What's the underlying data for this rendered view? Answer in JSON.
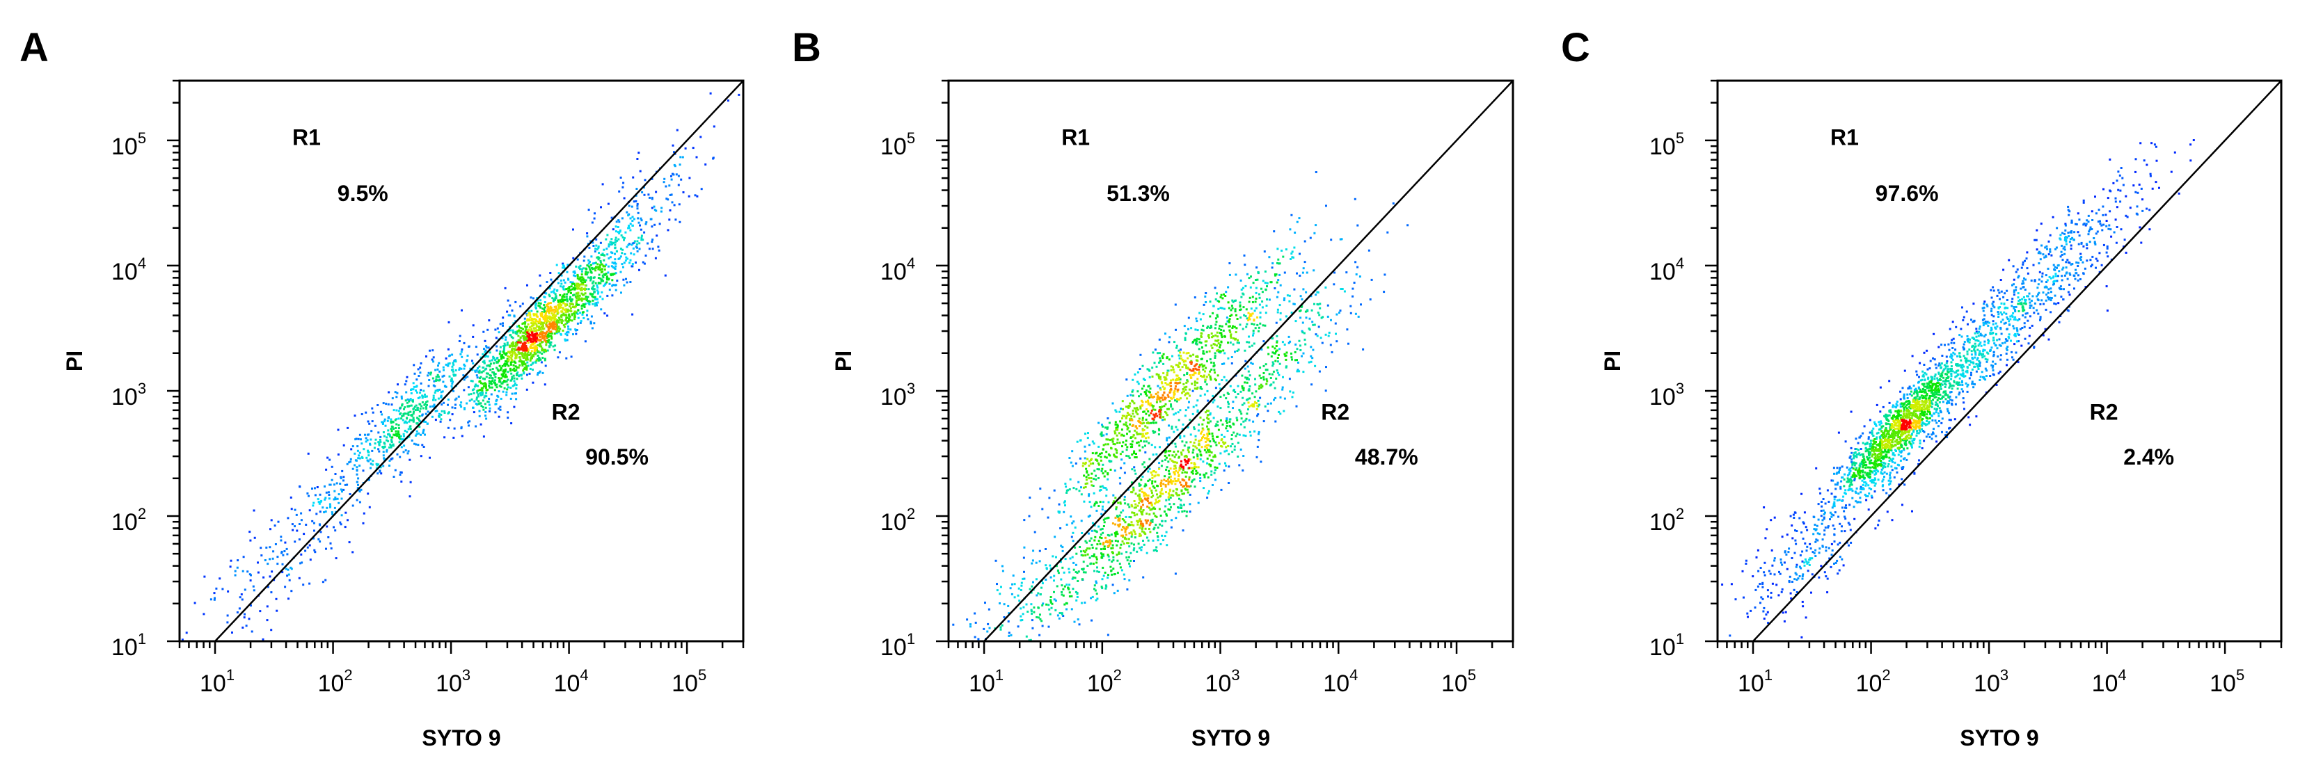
{
  "chart_data": [
    {
      "type": "scatter",
      "panel_label": "A",
      "xlabel": "SYTO 9",
      "ylabel": "PI",
      "x_scale": "log",
      "y_scale": "log",
      "xlim": [
        5,
        300000
      ],
      "ylim": [
        10,
        300000
      ],
      "x_ticks": [
        "10^1",
        "10^2",
        "10^3",
        "10^4",
        "10^5"
      ],
      "y_ticks": [
        "10^1",
        "10^2",
        "10^3",
        "10^4",
        "10^5"
      ],
      "diagonal_gate": "y = x",
      "regions": [
        {
          "name": "R1",
          "percent": "9.5%"
        },
        {
          "name": "R2",
          "percent": "90.5%"
        }
      ],
      "series": [
        {
          "values": [
            {
              "x": 400,
              "y": 600,
              "spread": 0.25,
              "weight": 0.2
            },
            {
              "x": 5000,
              "y": 2800,
              "spread": 0.22,
              "weight": 0.45
            },
            {
              "x": 12000,
              "y": 6000,
              "spread": 0.28,
              "weight": 0.2
            },
            {
              "x": 60,
              "y": 80,
              "spread": 0.35,
              "weight": 0.1
            },
            {
              "x": 40000,
              "y": 30000,
              "spread": 0.3,
              "weight": 0.05
            }
          ]
        }
      ]
    },
    {
      "type": "scatter",
      "panel_label": "B",
      "xlabel": "SYTO 9",
      "ylabel": "PI",
      "x_scale": "log",
      "y_scale": "log",
      "xlim": [
        5,
        300000
      ],
      "ylim": [
        10,
        300000
      ],
      "x_ticks": [
        "10^1",
        "10^2",
        "10^3",
        "10^4",
        "10^5"
      ],
      "y_ticks": [
        "10^1",
        "10^2",
        "10^3",
        "10^4",
        "10^5"
      ],
      "diagonal_gate": "y = x",
      "regions": [
        {
          "name": "R1",
          "percent": "51.3%"
        },
        {
          "name": "R2",
          "percent": "48.7%"
        }
      ],
      "series": [
        {
          "values": [
            {
              "x": 200,
              "y": 600,
              "spread": 0.25,
              "weight": 0.2
            },
            {
              "x": 800,
              "y": 2500,
              "spread": 0.3,
              "weight": 0.2
            },
            {
              "x": 300,
              "y": 150,
              "spread": 0.3,
              "weight": 0.3
            },
            {
              "x": 2000,
              "y": 1200,
              "spread": 0.35,
              "weight": 0.15
            },
            {
              "x": 40,
              "y": 30,
              "spread": 0.4,
              "weight": 0.15
            }
          ]
        }
      ]
    },
    {
      "type": "scatter",
      "panel_label": "C",
      "xlabel": "SYTO 9",
      "ylabel": "PI",
      "x_scale": "log",
      "y_scale": "log",
      "xlim": [
        5,
        300000
      ],
      "ylim": [
        10,
        300000
      ],
      "x_ticks": [
        "10^1",
        "10^2",
        "10^3",
        "10^4",
        "10^5"
      ],
      "y_ticks": [
        "10^1",
        "10^2",
        "10^3",
        "10^4",
        "10^5"
      ],
      "diagonal_gate": "y = x",
      "regions": [
        {
          "name": "R1",
          "percent": "97.6%"
        },
        {
          "name": "R2",
          "percent": "2.4%"
        }
      ],
      "series": [
        {
          "values": [
            {
              "x": 170,
              "y": 500,
              "spread": 0.18,
              "weight": 0.45
            },
            {
              "x": 700,
              "y": 2000,
              "spread": 0.3,
              "weight": 0.25
            },
            {
              "x": 4000,
              "y": 10000,
              "spread": 0.3,
              "weight": 0.15
            },
            {
              "x": 40,
              "y": 80,
              "spread": 0.35,
              "weight": 0.15
            }
          ]
        }
      ]
    }
  ],
  "colors": {
    "axis": "#000000",
    "density_low": "#0000ff",
    "density_mid": "#00ff00",
    "density_high": "#ff0000"
  }
}
